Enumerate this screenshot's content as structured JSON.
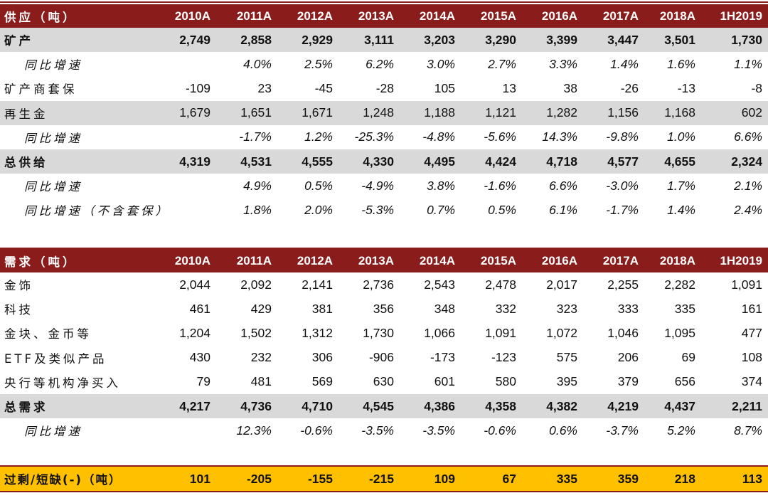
{
  "years": [
    "2010A",
    "2011A",
    "2012A",
    "2013A",
    "2014A",
    "2015A",
    "2016A",
    "2017A",
    "2018A",
    "1H2019"
  ],
  "supply": {
    "header": "供应（吨）",
    "rows": [
      {
        "label": "矿产",
        "values": [
          "2,749",
          "2,858",
          "2,929",
          "3,111",
          "3,203",
          "3,290",
          "3,399",
          "3,447",
          "3,501",
          "1,730"
        ],
        "style": "gray bold"
      },
      {
        "label": "同比增速",
        "values": [
          "",
          "4.0%",
          "2.5%",
          "6.2%",
          "3.0%",
          "2.7%",
          "3.3%",
          "1.4%",
          "1.6%",
          "1.1%"
        ],
        "style": "yoy"
      },
      {
        "label": "矿产商套保",
        "values": [
          "-109",
          "23",
          "-45",
          "-28",
          "105",
          "13",
          "38",
          "-26",
          "-13",
          "-8"
        ],
        "style": ""
      },
      {
        "label": "再生金",
        "values": [
          "1,679",
          "1,651",
          "1,671",
          "1,248",
          "1,188",
          "1,121",
          "1,282",
          "1,156",
          "1,168",
          "602"
        ],
        "style": "gray"
      },
      {
        "label": "同比增速",
        "values": [
          "",
          "-1.7%",
          "1.2%",
          "-25.3%",
          "-4.8%",
          "-5.6%",
          "14.3%",
          "-9.8%",
          "1.0%",
          "6.6%"
        ],
        "style": "yoy"
      },
      {
        "label": "总供给",
        "values": [
          "4,319",
          "4,531",
          "4,555",
          "4,330",
          "4,495",
          "4,424",
          "4,718",
          "4,577",
          "4,655",
          "2,324"
        ],
        "style": "gray bold"
      },
      {
        "label": "同比增速",
        "values": [
          "",
          "4.9%",
          "0.5%",
          "-4.9%",
          "3.8%",
          "-1.6%",
          "6.6%",
          "-3.0%",
          "1.7%",
          "2.1%"
        ],
        "style": "yoy"
      },
      {
        "label": "同比增速（不含套保）",
        "values": [
          "",
          "1.8%",
          "2.0%",
          "-5.3%",
          "0.7%",
          "0.5%",
          "6.1%",
          "-1.7%",
          "1.4%",
          "2.4%"
        ],
        "style": "yoy"
      }
    ]
  },
  "demand": {
    "header": "需求（吨）",
    "rows": [
      {
        "label": "金饰",
        "values": [
          "2,044",
          "2,092",
          "2,141",
          "2,736",
          "2,543",
          "2,478",
          "2,017",
          "2,255",
          "2,282",
          "1,091"
        ],
        "style": "plain"
      },
      {
        "label": "科技",
        "values": [
          "461",
          "429",
          "381",
          "356",
          "348",
          "332",
          "323",
          "333",
          "335",
          "161"
        ],
        "style": "plain"
      },
      {
        "label": "金块、金币等",
        "values": [
          "1,204",
          "1,502",
          "1,312",
          "1,730",
          "1,066",
          "1,091",
          "1,072",
          "1,046",
          "1,095",
          "477"
        ],
        "style": "plain"
      },
      {
        "label": "ETF及类似产品",
        "values": [
          "430",
          "232",
          "306",
          "-906",
          "-173",
          "-123",
          "575",
          "206",
          "69",
          "108"
        ],
        "style": "plain"
      },
      {
        "label": "央行等机构净买入",
        "values": [
          "79",
          "481",
          "569",
          "630",
          "601",
          "580",
          "395",
          "379",
          "656",
          "374"
        ],
        "style": "plain"
      },
      {
        "label": "总需求",
        "values": [
          "4,217",
          "4,736",
          "4,710",
          "4,545",
          "4,386",
          "4,358",
          "4,382",
          "4,219",
          "4,437",
          "2,211"
        ],
        "style": "gray bold"
      },
      {
        "label": "同比增速",
        "values": [
          "",
          "12.3%",
          "-0.6%",
          "-3.5%",
          "-3.5%",
          "-0.6%",
          "0.6%",
          "-3.7%",
          "5.2%",
          "8.7%"
        ],
        "style": "yoy"
      }
    ]
  },
  "balance": {
    "label": "过剩/短缺(-)（吨）",
    "values": [
      "101",
      "-205",
      "-155",
      "-215",
      "109",
      "67",
      "335",
      "359",
      "218",
      "113"
    ]
  },
  "colors": {
    "header_bg": "#8a1c1c",
    "highlight_bg": "#d9d9d9",
    "balance_bg": "#ffc000"
  }
}
